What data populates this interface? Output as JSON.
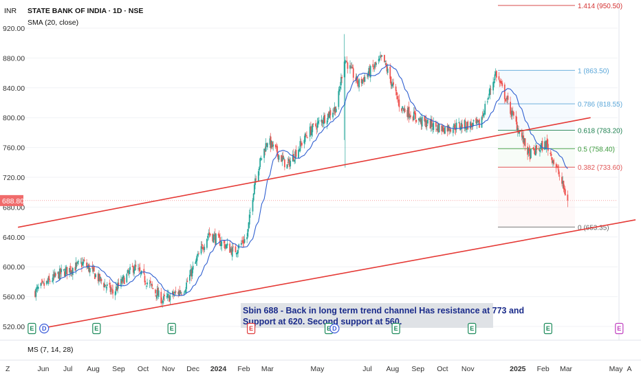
{
  "header": {
    "currency": "INR",
    "title": "STATE BANK OF INDIA · 1D · NSE",
    "indicator": "SMA (20, close)"
  },
  "bottom_pane": {
    "label": "MS (7, 14, 28)",
    "left_button": "Z",
    "right_button": "A"
  },
  "chart_data": {
    "type": "candlestick",
    "price_axis": {
      "range": [
        510,
        950
      ],
      "ticks": [
        "920.00",
        "880.00",
        "840.00",
        "800.00",
        "760.00",
        "720.00",
        "680.00",
        "640.00",
        "600.00",
        "560.00",
        "520.00"
      ],
      "last_price": "688.80"
    },
    "time_axis": {
      "labels": [
        "Jun",
        "Jul",
        "Aug",
        "Sep",
        "Oct",
        "Nov",
        "Dec",
        "2024",
        "Feb",
        "Mar",
        "May",
        "Jul",
        "Aug",
        "Sep",
        "Oct",
        "Nov",
        "2025",
        "Feb",
        "Mar",
        "May",
        "A"
      ],
      "bold_labels": [
        "2024",
        "2025"
      ]
    },
    "price_path_anchors": [
      {
        "date": "2023-05-20",
        "close": 565
      },
      {
        "date": "2023-06-20",
        "close": 590
      },
      {
        "date": "2023-07-20",
        "close": 605
      },
      {
        "date": "2023-08-25",
        "close": 565
      },
      {
        "date": "2023-09-20",
        "close": 600
      },
      {
        "date": "2023-10-25",
        "close": 555
      },
      {
        "date": "2023-11-20",
        "close": 570
      },
      {
        "date": "2023-12-20",
        "close": 645
      },
      {
        "date": "2024-01-20",
        "close": 620
      },
      {
        "date": "2024-02-05",
        "close": 640
      },
      {
        "date": "2024-02-15",
        "close": 720
      },
      {
        "date": "2024-03-01",
        "close": 770
      },
      {
        "date": "2024-03-25",
        "close": 735
      },
      {
        "date": "2024-04-20",
        "close": 780
      },
      {
        "date": "2024-05-25",
        "close": 815
      },
      {
        "date": "2024-06-03",
        "close": 880
      },
      {
        "date": "2024-06-20",
        "close": 845
      },
      {
        "date": "2024-07-20",
        "close": 880
      },
      {
        "date": "2024-08-10",
        "close": 815
      },
      {
        "date": "2024-09-05",
        "close": 795
      },
      {
        "date": "2024-10-01",
        "close": 785
      },
      {
        "date": "2024-10-25",
        "close": 790
      },
      {
        "date": "2024-11-15",
        "close": 790
      },
      {
        "date": "2024-12-05",
        "close": 860
      },
      {
        "date": "2024-12-25",
        "close": 805
      },
      {
        "date": "2025-01-15",
        "close": 750
      },
      {
        "date": "2025-02-05",
        "close": 765
      },
      {
        "date": "2025-02-20",
        "close": 725
      },
      {
        "date": "2025-03-03",
        "close": 688.8
      }
    ],
    "sma20_label": "SMA (20, close)",
    "trend_channel": [
      {
        "start": {
          "date": "2023-05-01",
          "price": 653
        },
        "end": {
          "date": "2025-03-31",
          "price": 800
        }
      },
      {
        "start": {
          "date": "2023-06-01",
          "price": 518
        },
        "end": {
          "date": "2025-05-25",
          "price": 663
        }
      }
    ],
    "fibonacci": [
      {
        "level": "1.414",
        "price": "950.50",
        "color": "#d32f2f"
      },
      {
        "level": "1",
        "price": "863.50",
        "color": "#5aa6d8"
      },
      {
        "level": "0.786",
        "price": "818.55",
        "color": "#5aa6d8"
      },
      {
        "level": "0.618",
        "price": "783.20",
        "color": "#1b7f4e"
      },
      {
        "level": "0.5",
        "price": "758.40",
        "color": "#3c9a3c"
      },
      {
        "level": "0.382",
        "price": "733.60",
        "color": "#e05555"
      },
      {
        "level": "0",
        "price": "653.35",
        "color": "#666666"
      }
    ],
    "events": [
      {
        "label": "E",
        "date": "2023-05-18",
        "color": "#1b8a5a"
      },
      {
        "label": "D",
        "date": "2023-06-02",
        "color": "#3a5bd9"
      },
      {
        "label": "E",
        "date": "2023-08-05",
        "color": "#1b8a5a"
      },
      {
        "label": "E",
        "date": "2023-11-05",
        "color": "#1b8a5a"
      },
      {
        "label": "E",
        "date": "2024-02-10",
        "color": "#e03b3b"
      },
      {
        "label": "E",
        "date": "2024-05-15",
        "color": "#1b8a5a"
      },
      {
        "label": "D",
        "date": "2024-05-22",
        "color": "#3a5bd9"
      },
      {
        "label": "E",
        "date": "2024-08-05",
        "color": "#1b8a5a"
      },
      {
        "label": "E",
        "date": "2024-11-06",
        "color": "#1b8a5a"
      },
      {
        "label": "E",
        "date": "2025-02-07",
        "color": "#1b8a5a"
      },
      {
        "label": "E",
        "date": "2025-05-05",
        "color": "#c040c0"
      }
    ],
    "annotation": {
      "line1": "Sbin 688 - Back in long term trend channel Has resistance at 773 and",
      "line2": "Support at 620. Second support at 560."
    },
    "colors": {
      "up": "#26a69a",
      "down": "#ef5350",
      "sma": "#2f5fd0",
      "channel": "#e53935",
      "last_price_label": "#f06b6b"
    }
  }
}
